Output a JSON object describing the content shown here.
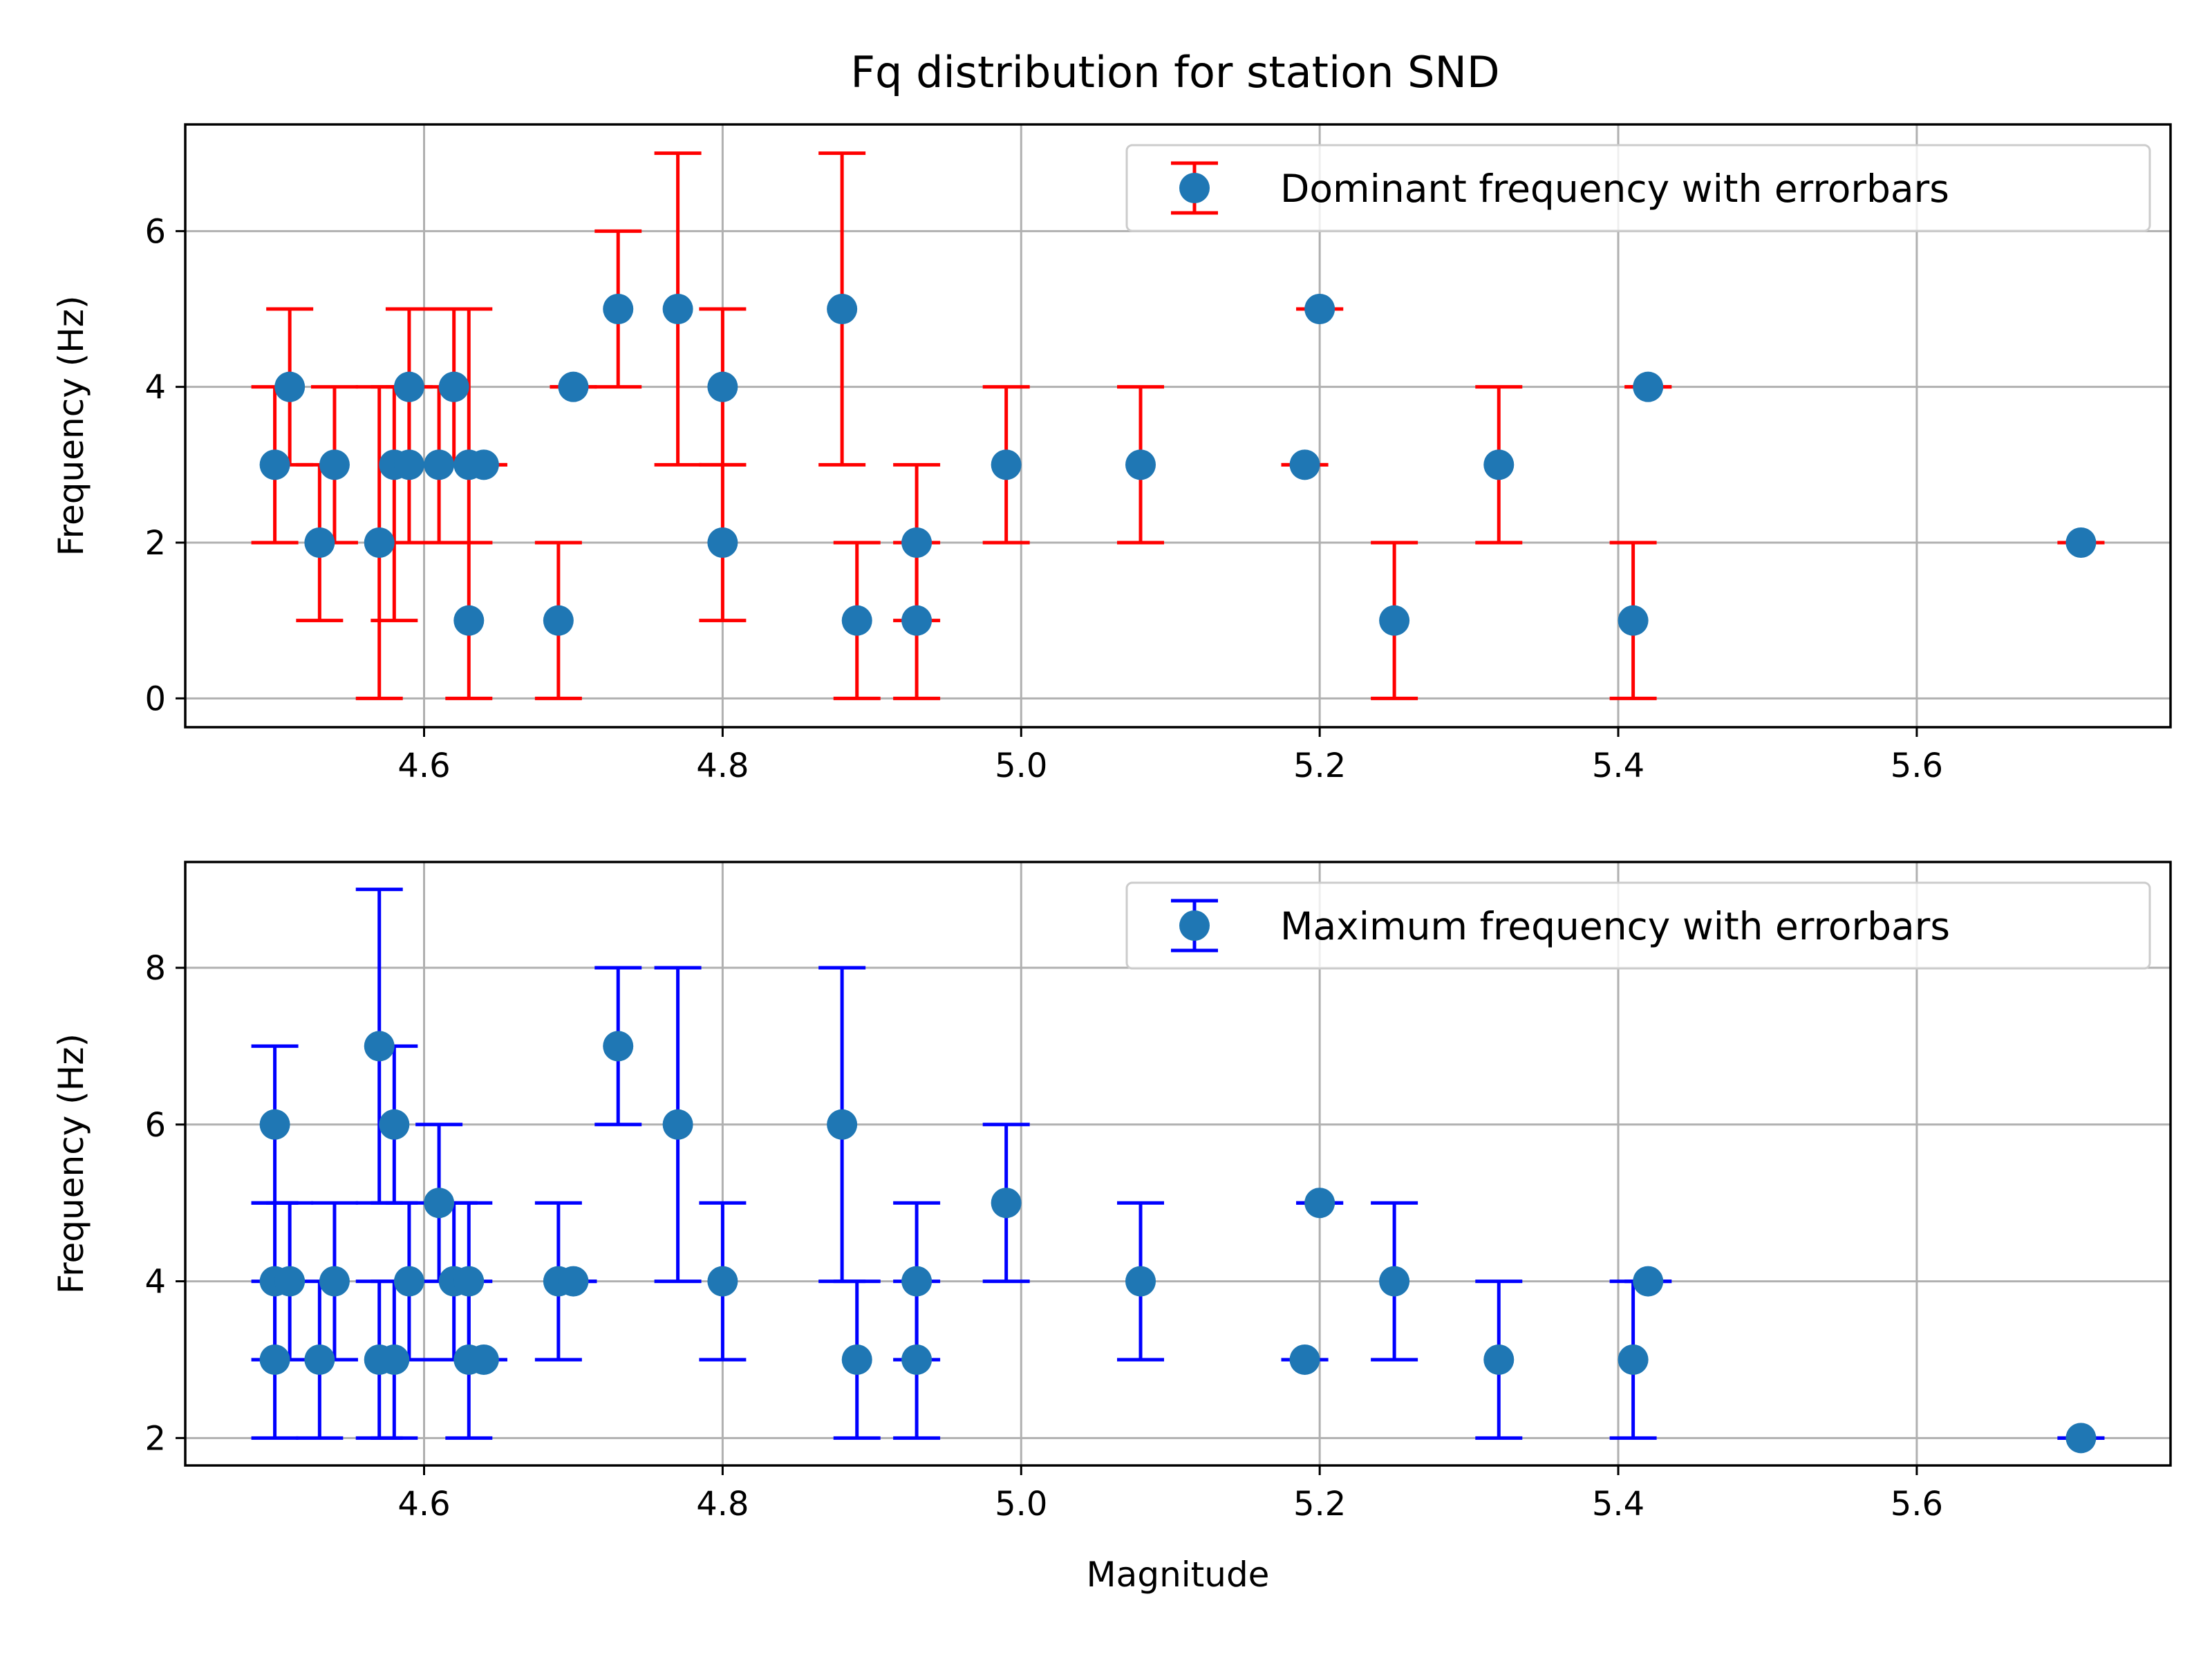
{
  "title": "Fq distribution for station SND",
  "colors": {
    "marker": "#1f77b4",
    "grid": "#b0b0b0",
    "legend_border": "#cccccc"
  },
  "chart_data": [
    {
      "type": "scatter",
      "subtype": "errorbar",
      "xlabel": "",
      "ylabel": "Frequency (Hz)",
      "xlim": [
        4.44,
        5.77
      ],
      "ylim": [
        -0.37,
        7.37
      ],
      "xticks": [
        4.6,
        4.8,
        5.0,
        5.2,
        5.4,
        5.6
      ],
      "xtick_labels": [
        "4.6",
        "4.8",
        "5.0",
        "5.2",
        "5.4",
        "5.6"
      ],
      "yticks": [
        0,
        2,
        4,
        6
      ],
      "ytick_labels": [
        "0",
        "2",
        "4",
        "6"
      ],
      "grid": true,
      "legend_position": "top-right",
      "series": [
        {
          "name": "Dominant frequency with errorbars",
          "errorbar_color": "#ff0000",
          "marker_color": "#1f77b4",
          "points": [
            {
              "x": 4.5,
              "y": 3,
              "low": 2,
              "high": 4
            },
            {
              "x": 4.51,
              "y": 4,
              "low": 3,
              "high": 5
            },
            {
              "x": 4.53,
              "y": 2,
              "low": 1,
              "high": 3
            },
            {
              "x": 4.54,
              "y": 3,
              "low": 2,
              "high": 4
            },
            {
              "x": 4.57,
              "y": 2,
              "low": 0,
              "high": 4
            },
            {
              "x": 4.58,
              "y": 3,
              "low": 1,
              "high": 4
            },
            {
              "x": 4.59,
              "y": 4,
              "low": 3,
              "high": 5
            },
            {
              "x": 4.59,
              "y": 3,
              "low": 2,
              "high": 4
            },
            {
              "x": 4.61,
              "y": 3,
              "low": 2,
              "high": 4
            },
            {
              "x": 4.62,
              "y": 4,
              "low": 3,
              "high": 5
            },
            {
              "x": 4.63,
              "y": 3,
              "low": 2,
              "high": 5
            },
            {
              "x": 4.63,
              "y": 1,
              "low": 0,
              "high": 2
            },
            {
              "x": 4.64,
              "y": 3,
              "low": 3,
              "high": 3
            },
            {
              "x": 4.69,
              "y": 1,
              "low": 0,
              "high": 2
            },
            {
              "x": 4.7,
              "y": 4,
              "low": 4,
              "high": 4
            },
            {
              "x": 4.73,
              "y": 5,
              "low": 4,
              "high": 6
            },
            {
              "x": 4.77,
              "y": 5,
              "low": 3,
              "high": 7
            },
            {
              "x": 4.8,
              "y": 4,
              "low": 3,
              "high": 5
            },
            {
              "x": 4.8,
              "y": 2,
              "low": 1,
              "high": 3
            },
            {
              "x": 4.88,
              "y": 5,
              "low": 3,
              "high": 7
            },
            {
              "x": 4.89,
              "y": 1,
              "low": 0,
              "high": 2
            },
            {
              "x": 4.93,
              "y": 2,
              "low": 1,
              "high": 3
            },
            {
              "x": 4.93,
              "y": 1,
              "low": 0,
              "high": 2
            },
            {
              "x": 4.99,
              "y": 3,
              "low": 2,
              "high": 4
            },
            {
              "x": 5.08,
              "y": 3,
              "low": 2,
              "high": 4
            },
            {
              "x": 5.19,
              "y": 3,
              "low": 3,
              "high": 3
            },
            {
              "x": 5.2,
              "y": 5,
              "low": 5,
              "high": 5
            },
            {
              "x": 5.25,
              "y": 1,
              "low": 0,
              "high": 2
            },
            {
              "x": 5.32,
              "y": 3,
              "low": 2,
              "high": 4
            },
            {
              "x": 5.41,
              "y": 1,
              "low": 0,
              "high": 2
            },
            {
              "x": 5.42,
              "y": 4,
              "low": 4,
              "high": 4
            },
            {
              "x": 5.71,
              "y": 2,
              "low": 2,
              "high": 2
            }
          ]
        }
      ]
    },
    {
      "type": "scatter",
      "subtype": "errorbar",
      "xlabel": "Magnitude",
      "ylabel": "Frequency (Hz)",
      "xlim": [
        4.44,
        5.77
      ],
      "ylim": [
        1.65,
        9.35
      ],
      "xticks": [
        4.6,
        4.8,
        5.0,
        5.2,
        5.4,
        5.6
      ],
      "xtick_labels": [
        "4.6",
        "4.8",
        "5.0",
        "5.2",
        "5.4",
        "5.6"
      ],
      "yticks": [
        2,
        4,
        6,
        8
      ],
      "ytick_labels": [
        "2",
        "4",
        "6",
        "8"
      ],
      "grid": true,
      "legend_position": "top-right",
      "series": [
        {
          "name": "Maximum frequency with errorbars",
          "errorbar_color": "#0000ff",
          "marker_color": "#1f77b4",
          "points": [
            {
              "x": 4.5,
              "y": 6,
              "low": 5,
              "high": 7
            },
            {
              "x": 4.5,
              "y": 4,
              "low": 3,
              "high": 5
            },
            {
              "x": 4.5,
              "y": 3,
              "low": 2,
              "high": 4
            },
            {
              "x": 4.51,
              "y": 4,
              "low": 3,
              "high": 5
            },
            {
              "x": 4.53,
              "y": 3,
              "low": 2,
              "high": 4
            },
            {
              "x": 4.54,
              "y": 4,
              "low": 3,
              "high": 5
            },
            {
              "x": 4.57,
              "y": 7,
              "low": 5,
              "high": 9
            },
            {
              "x": 4.57,
              "y": 3,
              "low": 2,
              "high": 4
            },
            {
              "x": 4.58,
              "y": 6,
              "low": 5,
              "high": 7
            },
            {
              "x": 4.58,
              "y": 3,
              "low": 2,
              "high": 4
            },
            {
              "x": 4.59,
              "y": 4,
              "low": 3,
              "high": 5
            },
            {
              "x": 4.61,
              "y": 5,
              "low": 4,
              "high": 6
            },
            {
              "x": 4.62,
              "y": 4,
              "low": 3,
              "high": 5
            },
            {
              "x": 4.63,
              "y": 4,
              "low": 3,
              "high": 5
            },
            {
              "x": 4.63,
              "y": 3,
              "low": 2,
              "high": 4
            },
            {
              "x": 4.64,
              "y": 3,
              "low": 3,
              "high": 3
            },
            {
              "x": 4.69,
              "y": 4,
              "low": 3,
              "high": 5
            },
            {
              "x": 4.7,
              "y": 4,
              "low": 4,
              "high": 4
            },
            {
              "x": 4.73,
              "y": 7,
              "low": 6,
              "high": 8
            },
            {
              "x": 4.77,
              "y": 6,
              "low": 4,
              "high": 8
            },
            {
              "x": 4.8,
              "y": 4,
              "low": 3,
              "high": 5
            },
            {
              "x": 4.88,
              "y": 6,
              "low": 4,
              "high": 8
            },
            {
              "x": 4.89,
              "y": 3,
              "low": 2,
              "high": 4
            },
            {
              "x": 4.93,
              "y": 4,
              "low": 3,
              "high": 5
            },
            {
              "x": 4.93,
              "y": 3,
              "low": 2,
              "high": 4
            },
            {
              "x": 4.99,
              "y": 5,
              "low": 4,
              "high": 6
            },
            {
              "x": 5.08,
              "y": 4,
              "low": 3,
              "high": 5
            },
            {
              "x": 5.19,
              "y": 3,
              "low": 3,
              "high": 3
            },
            {
              "x": 5.2,
              "y": 5,
              "low": 5,
              "high": 5
            },
            {
              "x": 5.25,
              "y": 4,
              "low": 3,
              "high": 5
            },
            {
              "x": 5.32,
              "y": 3,
              "low": 2,
              "high": 4
            },
            {
              "x": 5.41,
              "y": 3,
              "low": 2,
              "high": 4
            },
            {
              "x": 5.42,
              "y": 4,
              "low": 4,
              "high": 4
            },
            {
              "x": 5.71,
              "y": 2,
              "low": 2,
              "high": 2
            }
          ]
        }
      ]
    }
  ]
}
